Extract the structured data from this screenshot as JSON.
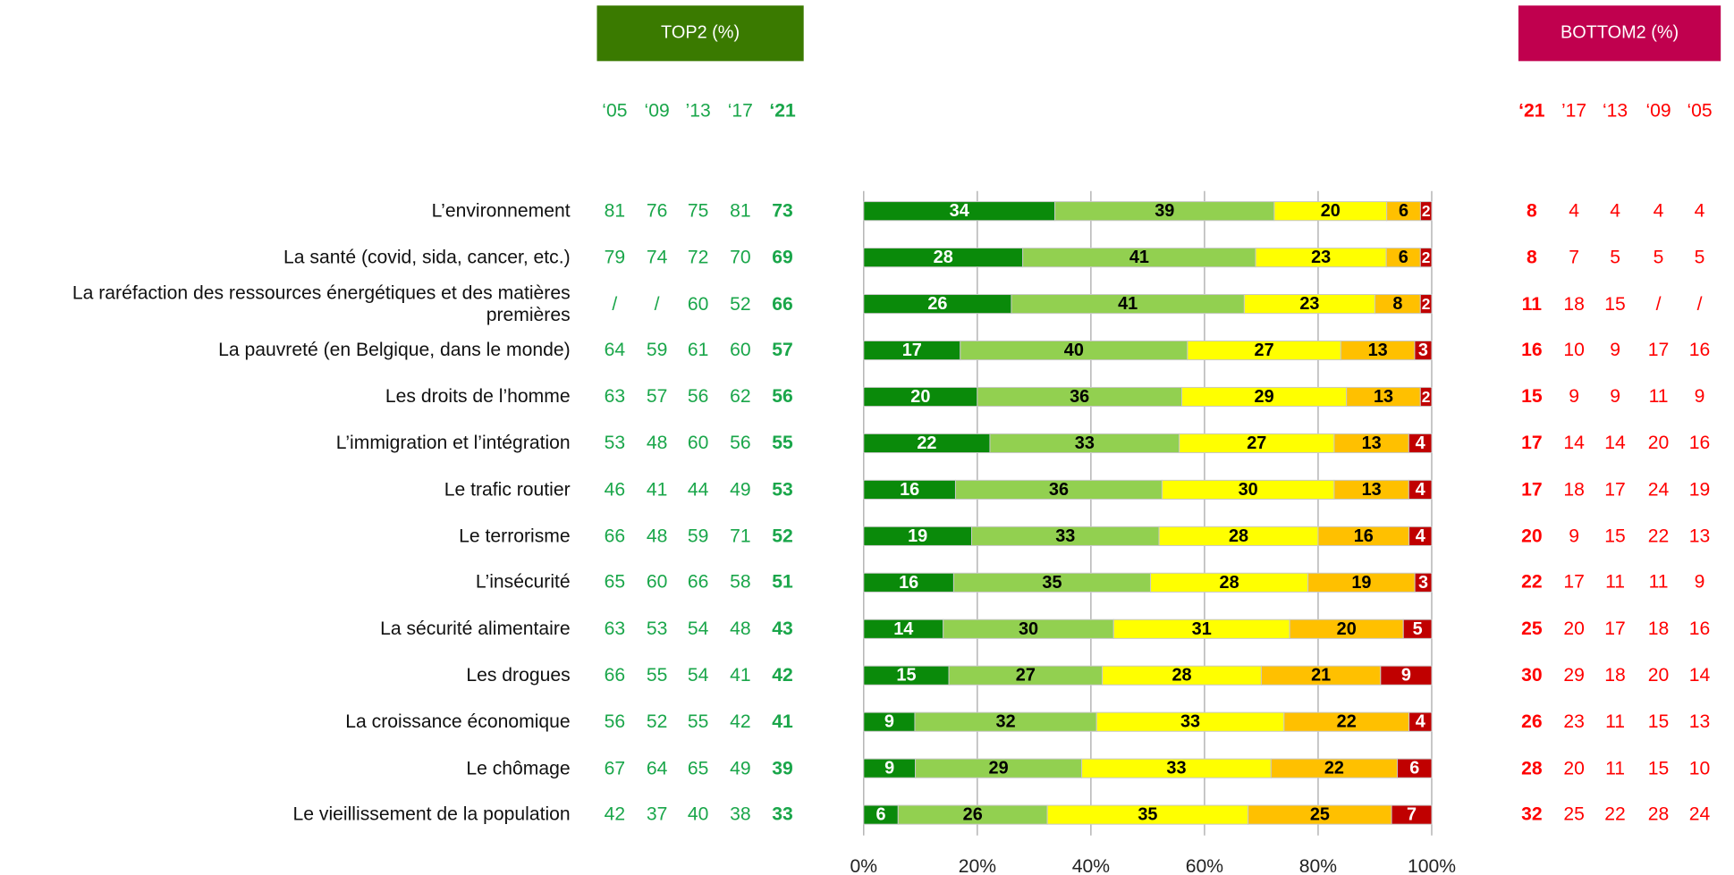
{
  "chart_data": {
    "type": "bar",
    "orientation": "horizontal",
    "stacked": true,
    "categories": [
      "L’environnement",
      "La santé (covid, sida, cancer, etc.)",
      "La raréfaction des ressources énergétiques et des matières premières",
      "La pauvreté (en Belgique, dans le monde)",
      "Les droits de l’homme",
      "L’immigration et l’intégration",
      "Le trafic routier",
      "Le terrorisme",
      "L’insécurité",
      "La sécurité alimentaire",
      "Les drogues",
      "La croissance économique",
      "Le chômage",
      "Le vieillissement de la population"
    ],
    "series": [
      {
        "color": "#0a8a0a",
        "values": [
          34,
          28,
          26,
          17,
          20,
          22,
          16,
          19,
          16,
          14,
          15,
          9,
          9,
          6
        ]
      },
      {
        "color": "#92d050",
        "values": [
          39,
          41,
          41,
          40,
          36,
          33,
          36,
          33,
          35,
          30,
          27,
          32,
          29,
          26
        ]
      },
      {
        "color": "#ffff00",
        "values": [
          20,
          23,
          23,
          27,
          29,
          27,
          30,
          28,
          28,
          31,
          28,
          33,
          33,
          35
        ]
      },
      {
        "color": "#ffc000",
        "values": [
          6,
          6,
          8,
          13,
          13,
          13,
          13,
          16,
          19,
          20,
          21,
          22,
          22,
          25
        ]
      },
      {
        "color": "#c00000",
        "values": [
          2,
          2,
          2,
          3,
          2,
          4,
          4,
          4,
          3,
          5,
          9,
          4,
          6,
          7
        ]
      }
    ],
    "xlim": [
      0,
      100
    ],
    "xticks": [
      {
        "value": 0,
        "label": "0%"
      },
      {
        "value": 20,
        "label": "20%"
      },
      {
        "value": 40,
        "label": "40%"
      },
      {
        "value": 60,
        "label": "60%"
      },
      {
        "value": 80,
        "label": "80%"
      },
      {
        "value": 100,
        "label": "100%"
      }
    ],
    "grid": true
  },
  "top2": {
    "title": "TOP2 (%)",
    "years": [
      "‘05",
      "‘09",
      "’13",
      "‘17",
      "‘21"
    ],
    "rows": [
      [
        "81",
        "76",
        "75",
        "81",
        "73"
      ],
      [
        "79",
        "74",
        "72",
        "70",
        "69"
      ],
      [
        "/",
        "/",
        "60",
        "52",
        "66"
      ],
      [
        "64",
        "59",
        "61",
        "60",
        "57"
      ],
      [
        "63",
        "57",
        "56",
        "62",
        "56"
      ],
      [
        "53",
        "48",
        "60",
        "56",
        "55"
      ],
      [
        "46",
        "41",
        "44",
        "49",
        "53"
      ],
      [
        "66",
        "48",
        "59",
        "71",
        "52"
      ],
      [
        "65",
        "60",
        "66",
        "58",
        "51"
      ],
      [
        "63",
        "53",
        "54",
        "48",
        "43"
      ],
      [
        "66",
        "55",
        "54",
        "41",
        "42"
      ],
      [
        "56",
        "52",
        "55",
        "42",
        "41"
      ],
      [
        "67",
        "64",
        "65",
        "49",
        "39"
      ],
      [
        "42",
        "37",
        "40",
        "38",
        "33"
      ]
    ]
  },
  "bottom2": {
    "title": "BOTTOM2 (%)",
    "years": [
      "‘21",
      "’17",
      "‘13",
      "‘09",
      "‘05"
    ],
    "rows": [
      [
        "8",
        "4",
        "4",
        "4",
        "4"
      ],
      [
        "8",
        "7",
        "5",
        "5",
        "5"
      ],
      [
        "11",
        "18",
        "15",
        "/",
        "/"
      ],
      [
        "16",
        "10",
        "9",
        "17",
        "16"
      ],
      [
        "15",
        "9",
        "9",
        "11",
        "9"
      ],
      [
        "17",
        "14",
        "14",
        "20",
        "16"
      ],
      [
        "17",
        "18",
        "17",
        "24",
        "19"
      ],
      [
        "20",
        "9",
        "15",
        "22",
        "13"
      ],
      [
        "22",
        "17",
        "11",
        "11",
        "9"
      ],
      [
        "25",
        "20",
        "17",
        "18",
        "16"
      ],
      [
        "30",
        "29",
        "18",
        "20",
        "14"
      ],
      [
        "26",
        "23",
        "11",
        "15",
        "13"
      ],
      [
        "28",
        "20",
        "11",
        "15",
        "10"
      ],
      [
        "32",
        "25",
        "22",
        "28",
        "24"
      ]
    ]
  }
}
